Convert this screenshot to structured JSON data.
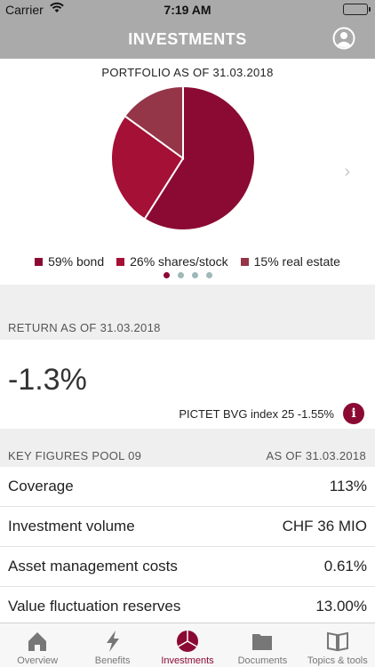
{
  "status": {
    "carrier": "Carrier",
    "time": "7:19 AM"
  },
  "header": {
    "title": "INVESTMENTS"
  },
  "portfolio": {
    "title": "PORTFOLIO AS OF 31.03.2018",
    "chart_data": {
      "type": "pie",
      "categories": [
        "bond",
        "shares/stock",
        "real estate"
      ],
      "values": [
        59,
        26,
        15
      ],
      "colors": [
        "#8b0a33",
        "#a41036",
        "#943548"
      ]
    },
    "legend": [
      {
        "label": "59% bond",
        "color": "#8b0a33"
      },
      {
        "label": "26% shares/stock",
        "color": "#a41036"
      },
      {
        "label": "15% real estate",
        "color": "#943548"
      }
    ],
    "page_count": 4,
    "active_page": 1
  },
  "return": {
    "header": "RETURN AS OF 31.03.2018",
    "value": "-1.3%",
    "index_text": "PICTET BVG index 25 -1.55%",
    "info_label": "i"
  },
  "key_figures": {
    "header_left": "KEY FIGURES POOL 09",
    "header_right": "AS OF 31.03.2018",
    "rows": [
      {
        "label": "Coverage",
        "value": "113%"
      },
      {
        "label": "Investment volume",
        "value": "CHF 36 MIO"
      },
      {
        "label": "Asset management costs",
        "value": "0.61%"
      },
      {
        "label": "Value fluctuation reserves",
        "value": "13.00%"
      }
    ]
  },
  "tabs": [
    {
      "label": "Overview",
      "icon": "home-icon"
    },
    {
      "label": "Benefits",
      "icon": "lightning-icon"
    },
    {
      "label": "Investments",
      "icon": "pie-chart-icon",
      "active": true
    },
    {
      "label": "Documents",
      "icon": "folder-icon"
    },
    {
      "label": "Topics & tools",
      "icon": "book-icon"
    }
  ],
  "colors": {
    "accent": "#8b0a33",
    "nav_bg": "#aaaaaa",
    "battery": "#4cd964"
  }
}
